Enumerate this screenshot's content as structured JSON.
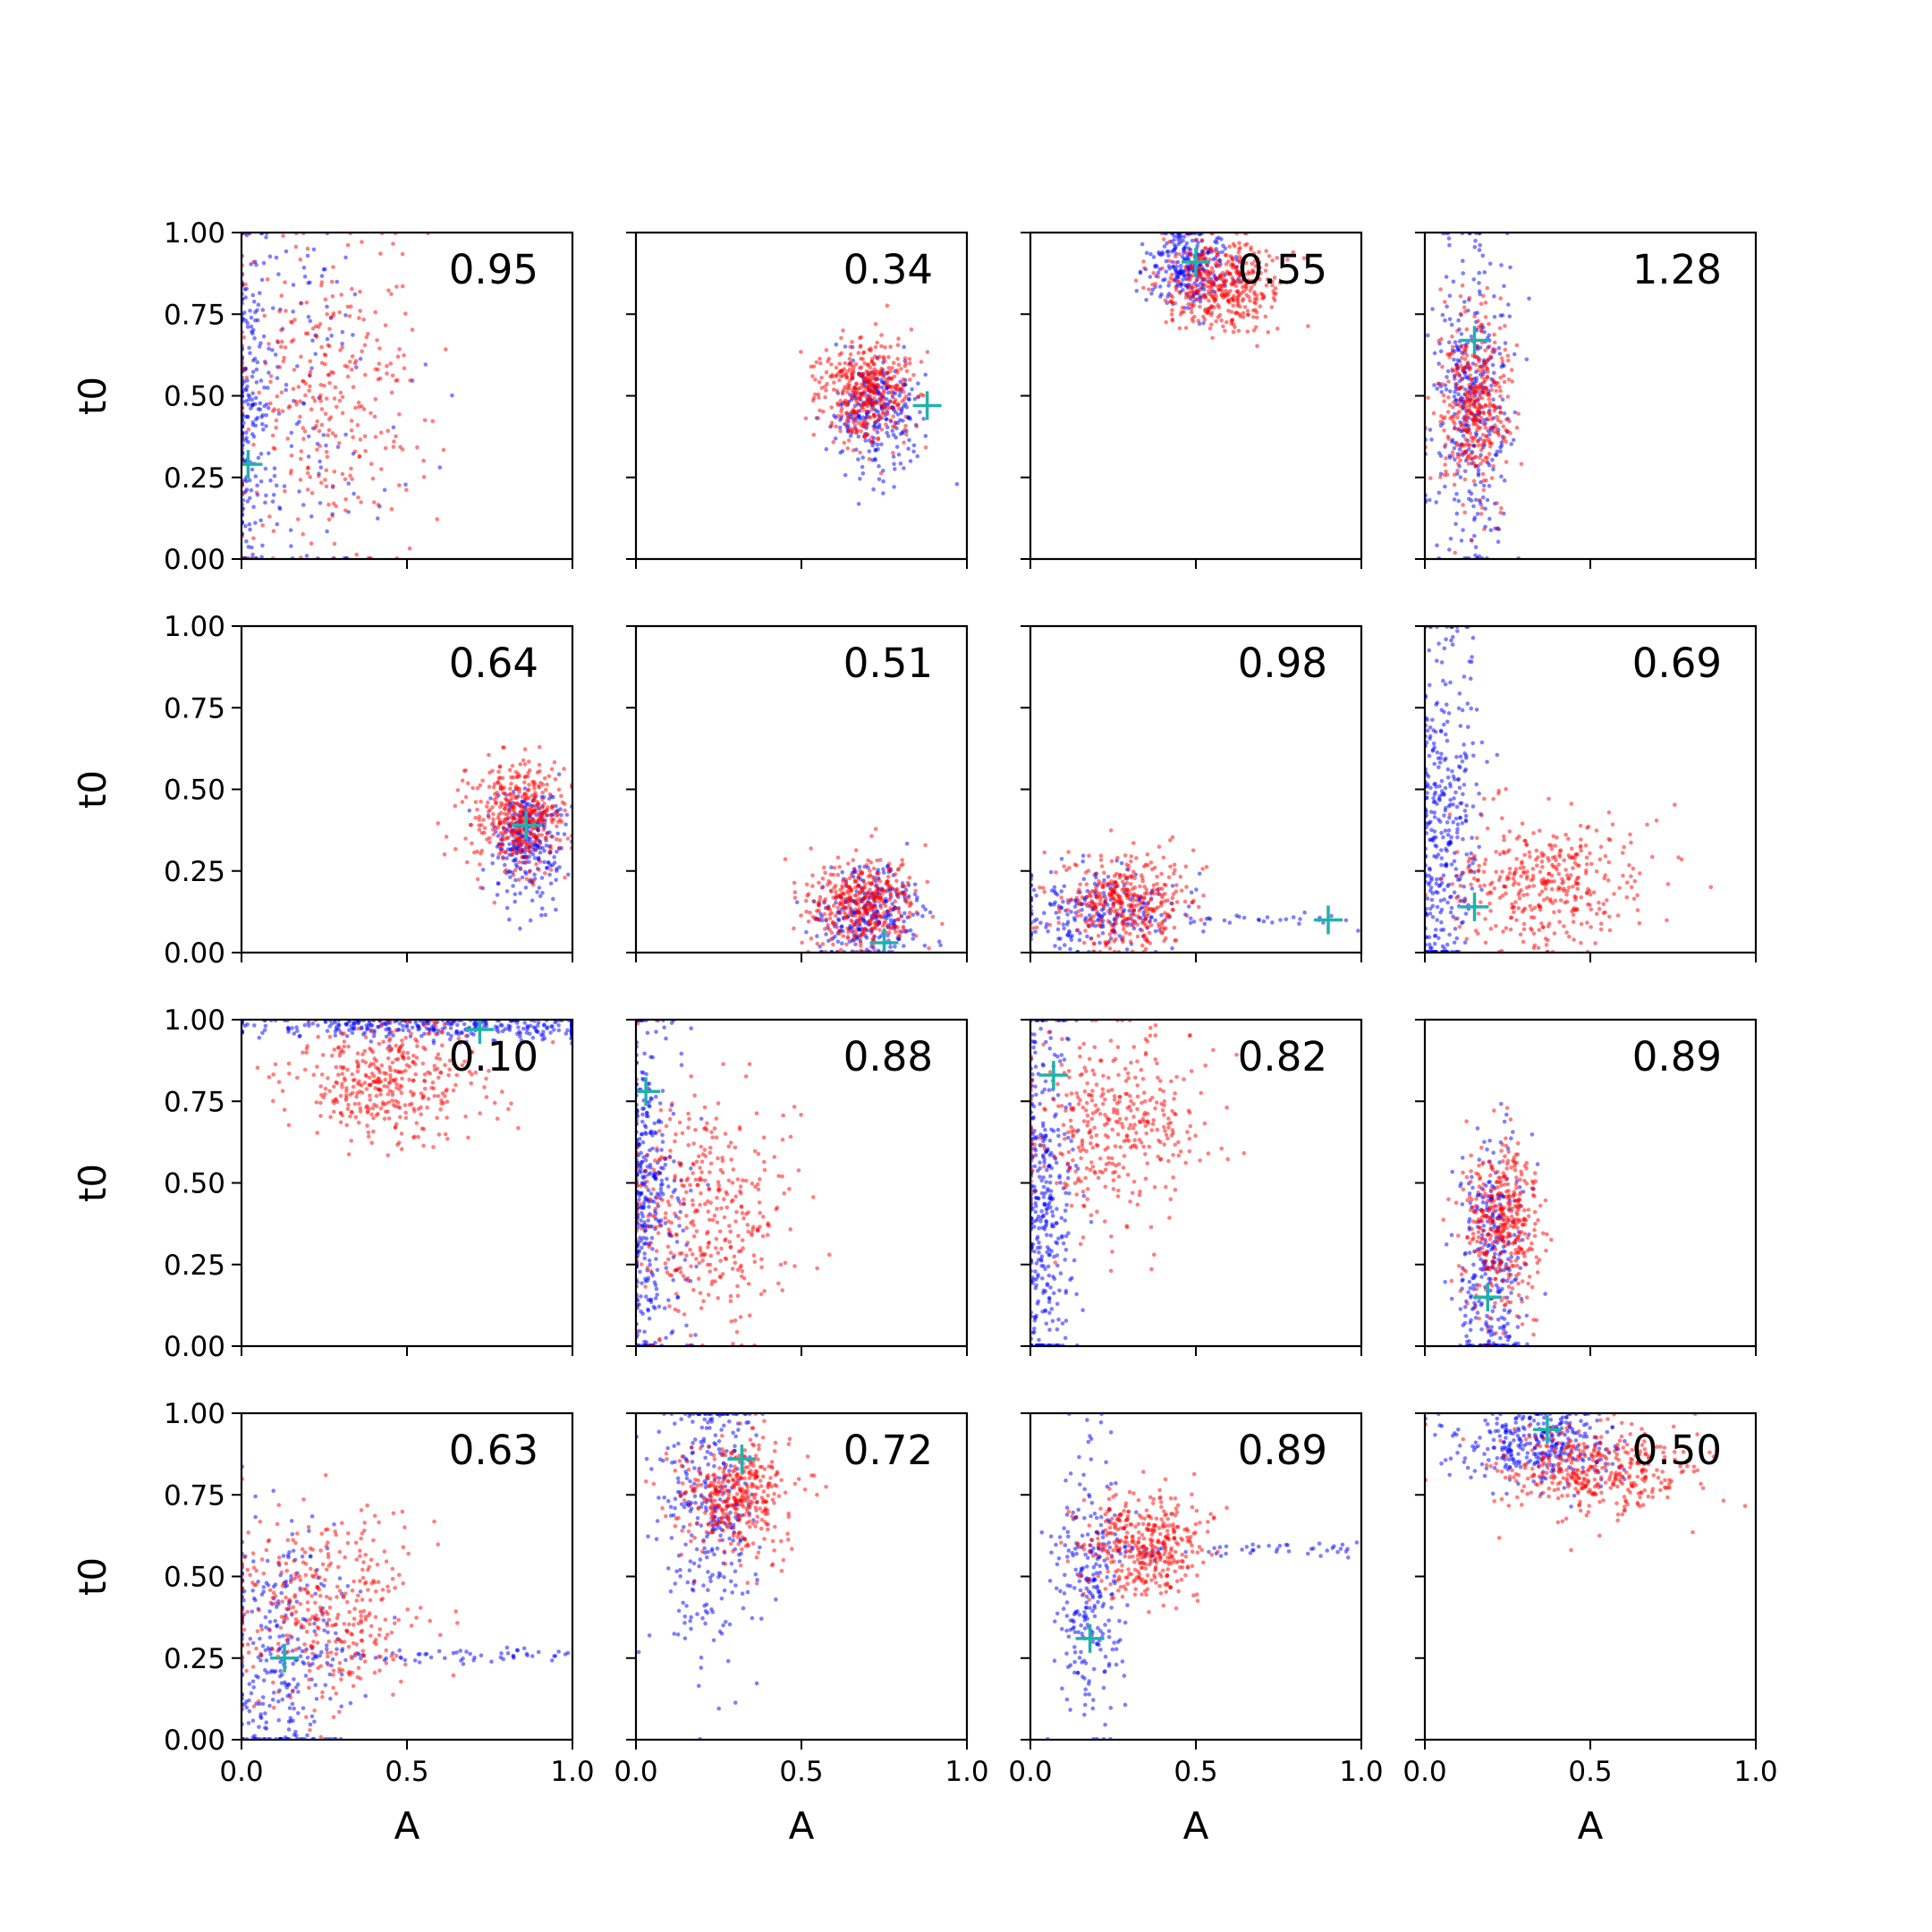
{
  "chart_data": {
    "type": "scatter",
    "layout": {
      "rows": 4,
      "cols": 4
    },
    "xlabel": "A",
    "ylabel": "t0",
    "xlim": [
      0,
      1
    ],
    "ylim": [
      0,
      1
    ],
    "xticks": [
      "0.0",
      "0.5",
      "1.0"
    ],
    "yticks": [
      "0.00",
      "0.25",
      "0.50",
      "0.75",
      "1.00"
    ],
    "grid": false,
    "series_colors": {
      "blue": "#0000ff",
      "red": "#ff0000",
      "marker": "#20b2aa"
    },
    "panels": [
      {
        "label": "0.95",
        "marker": [
          0.02,
          0.29
        ],
        "red": {
          "cx": 0.25,
          "cy": 0.5,
          "sx": 0.15,
          "sy": 0.24,
          "n": 320
        },
        "blue": {
          "cx": 0.1,
          "cy": 0.5,
          "sx": 0.18,
          "sy": 0.3,
          "n": 340,
          "edge_x": 0.02
        }
      },
      {
        "label": "0.34",
        "marker": [
          0.88,
          0.47
        ],
        "red": {
          "cx": 0.7,
          "cy": 0.52,
          "sx": 0.07,
          "sy": 0.08,
          "n": 420
        },
        "blue": {
          "cx": 0.73,
          "cy": 0.45,
          "sx": 0.07,
          "sy": 0.09,
          "n": 260
        }
      },
      {
        "label": "0.55",
        "marker": [
          0.5,
          0.91
        ],
        "red": {
          "cx": 0.58,
          "cy": 0.84,
          "sx": 0.09,
          "sy": 0.07,
          "n": 420
        },
        "blue": {
          "cx": 0.48,
          "cy": 0.9,
          "sx": 0.06,
          "sy": 0.06,
          "n": 260
        }
      },
      {
        "label": "1.28",
        "marker": [
          0.15,
          0.67
        ],
        "red": {
          "cx": 0.15,
          "cy": 0.47,
          "sx": 0.05,
          "sy": 0.15,
          "n": 400
        },
        "blue": {
          "cx": 0.14,
          "cy": 0.48,
          "sx": 0.06,
          "sy": 0.25,
          "n": 360
        }
      },
      {
        "label": "0.64",
        "marker": [
          0.86,
          0.39
        ],
        "red": {
          "cx": 0.84,
          "cy": 0.42,
          "sx": 0.07,
          "sy": 0.08,
          "n": 420
        },
        "blue": {
          "cx": 0.86,
          "cy": 0.34,
          "sx": 0.05,
          "sy": 0.09,
          "n": 280
        }
      },
      {
        "label": "0.51",
        "marker": [
          0.75,
          0.03
        ],
        "red": {
          "cx": 0.68,
          "cy": 0.15,
          "sx": 0.08,
          "sy": 0.07,
          "n": 400
        },
        "blue": {
          "cx": 0.7,
          "cy": 0.12,
          "sx": 0.08,
          "sy": 0.07,
          "n": 280
        }
      },
      {
        "label": "0.98",
        "marker": [
          0.9,
          0.1
        ],
        "red": {
          "cx": 0.3,
          "cy": 0.15,
          "sx": 0.1,
          "sy": 0.08,
          "n": 380
        },
        "blue": {
          "cx": 0.2,
          "cy": 0.13,
          "sx": 0.12,
          "sy": 0.06,
          "n": 260,
          "tail_y": 0.1
        }
      },
      {
        "label": "0.69",
        "marker": [
          0.15,
          0.14
        ],
        "red": {
          "cx": 0.38,
          "cy": 0.22,
          "sx": 0.14,
          "sy": 0.1,
          "n": 380
        },
        "blue": {
          "cx": 0.07,
          "cy": 0.4,
          "sx": 0.05,
          "sy": 0.28,
          "n": 360,
          "edge_x": 0.02
        }
      },
      {
        "label": "0.10",
        "marker": [
          0.72,
          0.97
        ],
        "red": {
          "cx": 0.45,
          "cy": 0.82,
          "sx": 0.14,
          "sy": 0.09,
          "n": 400
        },
        "blue": {
          "cx": 0.6,
          "cy": 0.98,
          "sx": 0.3,
          "sy": 0.02,
          "n": 320
        }
      },
      {
        "label": "0.88",
        "marker": [
          0.03,
          0.78
        ],
        "red": {
          "cx": 0.22,
          "cy": 0.4,
          "sx": 0.13,
          "sy": 0.18,
          "n": 380
        },
        "blue": {
          "cx": 0.05,
          "cy": 0.45,
          "sx": 0.06,
          "sy": 0.28,
          "n": 380,
          "edge_x": 0.02
        }
      },
      {
        "label": "0.82",
        "marker": [
          0.07,
          0.83
        ],
        "red": {
          "cx": 0.25,
          "cy": 0.68,
          "sx": 0.14,
          "sy": 0.15,
          "n": 380
        },
        "blue": {
          "cx": 0.05,
          "cy": 0.4,
          "sx": 0.05,
          "sy": 0.3,
          "n": 380,
          "edge_x": 0.02
        }
      },
      {
        "label": "0.89",
        "marker": [
          0.19,
          0.15
        ],
        "red": {
          "cx": 0.23,
          "cy": 0.37,
          "sx": 0.06,
          "sy": 0.13,
          "n": 400
        },
        "blue": {
          "cx": 0.2,
          "cy": 0.25,
          "sx": 0.05,
          "sy": 0.2,
          "n": 320
        }
      },
      {
        "label": "0.63",
        "marker": [
          0.13,
          0.25
        ],
        "red": {
          "cx": 0.25,
          "cy": 0.4,
          "sx": 0.15,
          "sy": 0.14,
          "n": 380
        },
        "blue": {
          "cx": 0.12,
          "cy": 0.25,
          "sx": 0.1,
          "sy": 0.2,
          "n": 360,
          "tail_y": 0.26
        }
      },
      {
        "label": "0.72",
        "marker": [
          0.32,
          0.86
        ],
        "red": {
          "cx": 0.3,
          "cy": 0.74,
          "sx": 0.09,
          "sy": 0.09,
          "n": 400
        },
        "blue": {
          "cx": 0.22,
          "cy": 0.7,
          "sx": 0.08,
          "sy": 0.22,
          "n": 320
        }
      },
      {
        "label": "0.89",
        "marker": [
          0.18,
          0.31
        ],
        "red": {
          "cx": 0.35,
          "cy": 0.6,
          "sx": 0.09,
          "sy": 0.08,
          "n": 400
        },
        "blue": {
          "cx": 0.18,
          "cy": 0.45,
          "sx": 0.05,
          "sy": 0.22,
          "n": 320,
          "tail_y": 0.58
        }
      },
      {
        "label": "0.50",
        "marker": [
          0.37,
          0.95
        ],
        "red": {
          "cx": 0.5,
          "cy": 0.82,
          "sx": 0.15,
          "sy": 0.07,
          "n": 400
        },
        "blue": {
          "cx": 0.35,
          "cy": 0.9,
          "sx": 0.12,
          "sy": 0.06,
          "n": 320
        }
      }
    ]
  }
}
